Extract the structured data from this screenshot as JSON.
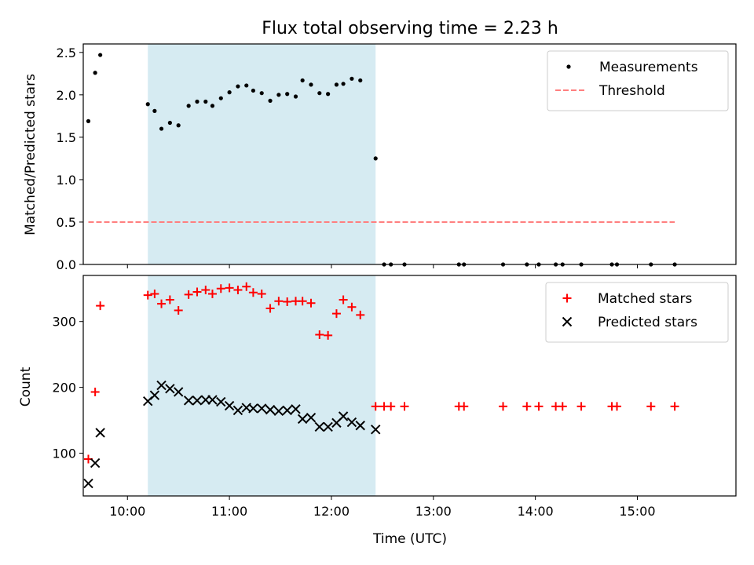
{
  "chart_data": [
    {
      "type": "scatter",
      "title": "Flux total observing time = 2.23 h",
      "xlabel": "",
      "ylabel": "Matched/Predicted stars",
      "xlim": [
        "09:34",
        "15:58"
      ],
      "ylim": [
        0,
        2.6
      ],
      "yticks": [
        0.0,
        0.5,
        1.0,
        1.5,
        2.0,
        2.5
      ],
      "ytick_labels": [
        "0.0",
        "0.5",
        "1.0",
        "1.5",
        "2.0",
        "2.5"
      ],
      "xticks": [
        "10:00",
        "11:00",
        "12:00",
        "13:00",
        "14:00",
        "15:00"
      ],
      "xtick_labels_visible": false,
      "grid": false,
      "legend": "top-right",
      "shaded_span": {
        "start": "10:12",
        "end": "12:26",
        "color": "#add8e6"
      },
      "series": [
        {
          "name": "Measurements",
          "marker": "dot",
          "color": "#000000",
          "x": [
            "09:37",
            "09:41",
            "09:44",
            "10:12",
            "10:16",
            "10:20",
            "10:25",
            "10:30",
            "10:36",
            "10:41",
            "10:46",
            "10:50",
            "10:55",
            "11:00",
            "11:05",
            "11:10",
            "11:14",
            "11:19",
            "11:24",
            "11:29",
            "11:34",
            "11:39",
            "11:43",
            "11:48",
            "11:53",
            "11:58",
            "12:03",
            "12:07",
            "12:12",
            "12:17",
            "12:26",
            "12:31",
            "12:35",
            "12:43",
            "13:15",
            "13:18",
            "13:41",
            "13:55",
            "14:02",
            "14:12",
            "14:16",
            "14:27",
            "14:45",
            "14:48",
            "15:08",
            "15:22"
          ],
          "y": [
            1.69,
            2.26,
            2.47,
            1.89,
            1.81,
            1.6,
            1.67,
            1.64,
            1.87,
            1.92,
            1.92,
            1.87,
            1.96,
            2.03,
            2.1,
            2.11,
            2.05,
            2.02,
            1.93,
            2.0,
            2.01,
            1.98,
            2.17,
            2.12,
            2.02,
            2.01,
            2.12,
            2.13,
            2.19,
            2.17,
            1.25,
            0,
            0,
            0,
            0,
            0,
            0,
            0,
            0,
            0,
            0,
            0,
            0,
            0,
            0,
            0
          ]
        },
        {
          "name": "Threshold",
          "style": "dashed",
          "color": "#ff7f7f",
          "x": [
            "09:37",
            "15:22"
          ],
          "y": [
            0.5,
            0.5
          ]
        }
      ]
    },
    {
      "type": "scatter",
      "title": "",
      "xlabel": "Time (UTC)",
      "ylabel": "Count",
      "xlim": [
        "09:34",
        "15:58"
      ],
      "ylim": [
        35,
        370
      ],
      "yticks": [
        100,
        200,
        300
      ],
      "ytick_labels": [
        "100",
        "200",
        "300"
      ],
      "xticks": [
        "10:00",
        "11:00",
        "12:00",
        "13:00",
        "14:00",
        "15:00"
      ],
      "xtick_labels": [
        "10:00",
        "11:00",
        "12:00",
        "13:00",
        "14:00",
        "15:00"
      ],
      "grid": false,
      "legend": "top-right",
      "shaded_span": {
        "start": "10:12",
        "end": "12:26",
        "color": "#add8e6"
      },
      "series": [
        {
          "name": "Matched stars",
          "marker": "plus",
          "color": "#ff0000",
          "x": [
            "09:37",
            "09:41",
            "09:44",
            "10:12",
            "10:16",
            "10:20",
            "10:25",
            "10:30",
            "10:36",
            "10:41",
            "10:46",
            "10:50",
            "10:55",
            "11:00",
            "11:05",
            "11:10",
            "11:14",
            "11:19",
            "11:24",
            "11:29",
            "11:34",
            "11:39",
            "11:43",
            "11:48",
            "11:53",
            "11:58",
            "12:03",
            "12:07",
            "12:12",
            "12:17",
            "12:26",
            "12:31",
            "12:35",
            "12:43",
            "13:15",
            "13:18",
            "13:41",
            "13:55",
            "14:02",
            "14:12",
            "14:16",
            "14:27",
            "14:45",
            "14:48",
            "15:08",
            "15:22"
          ],
          "y": [
            91,
            193,
            324,
            340,
            342,
            327,
            333,
            317,
            341,
            345,
            348,
            342,
            350,
            351,
            348,
            353,
            344,
            342,
            320,
            331,
            330,
            331,
            331,
            328,
            280,
            279,
            312,
            333,
            322,
            310,
            171,
            171,
            171,
            171,
            171,
            171,
            171,
            171,
            171,
            171,
            171,
            171,
            171,
            171,
            171,
            171
          ]
        },
        {
          "name": "Predicted stars",
          "marker": "x",
          "color": "#000000",
          "x": [
            "09:37",
            "09:41",
            "09:44",
            "10:12",
            "10:16",
            "10:20",
            "10:25",
            "10:30",
            "10:36",
            "10:41",
            "10:46",
            "10:50",
            "10:55",
            "11:00",
            "11:05",
            "11:10",
            "11:14",
            "11:19",
            "11:24",
            "11:29",
            "11:34",
            "11:39",
            "11:43",
            "11:48",
            "11:53",
            "11:58",
            "12:03",
            "12:07",
            "12:12",
            "12:17",
            "12:26"
          ],
          "y": [
            54,
            85,
            131,
            179,
            188,
            203,
            198,
            193,
            180,
            180,
            181,
            181,
            178,
            172,
            165,
            169,
            168,
            168,
            166,
            164,
            165,
            167,
            152,
            154,
            140,
            140,
            146,
            156,
            147,
            142,
            136
          ]
        }
      ]
    }
  ]
}
